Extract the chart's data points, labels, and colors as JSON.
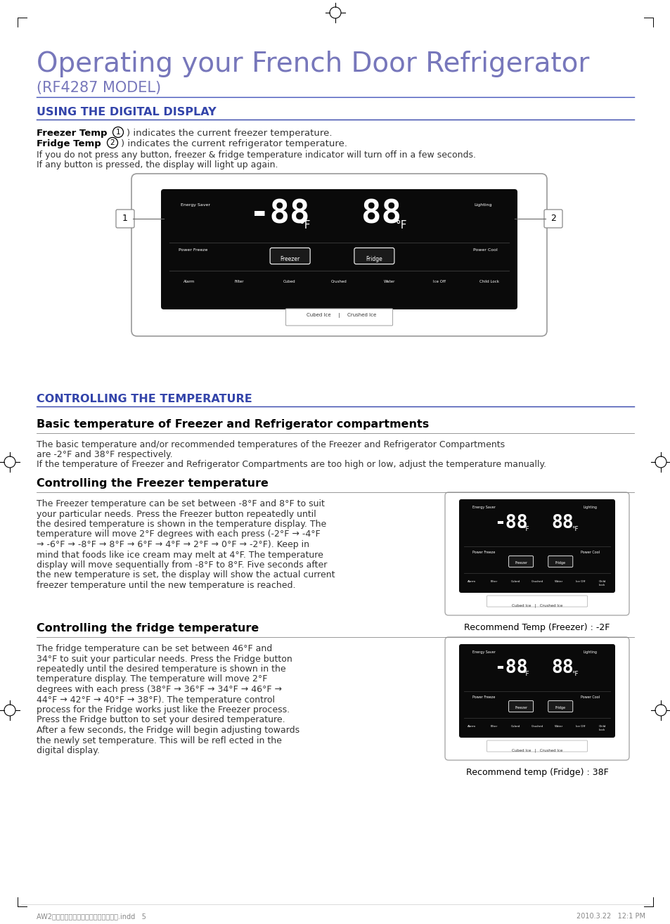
{
  "title_main": "Operating your French Door Refrigerator",
  "title_sub": "(RF4287 MODEL)",
  "title_color": "#7777bb",
  "section1_heading": "USING THE DIGITAL DISPLAY",
  "section_color": "#3344aa",
  "section2_heading": "CONTROLLING THE TEMPERATURE",
  "body_color": "#333333",
  "bold_color": "#000000",
  "line_color": "#4455bb",
  "bg_color": "#ffffff",
  "info_line1": "If you do not press any button, freezer & fridge temperature indicator will turn off in a few seconds.",
  "info_line2": "If any button is pressed, the display will light up again.",
  "basic_temp_heading": "Basic temperature of Freezer and Refrigerator compartments",
  "basic_temp_p1": "The basic temperature and/or recommended temperatures of the Freezer and Refrigerator Compartments",
  "basic_temp_p2": "are -2°F and 38°F respectively.",
  "basic_temp_p3": "If the temperature of Freezer and Refrigerator Compartments are too high or low, adjust the temperature manually.",
  "freezer_heading": "Controlling the Freezer temperature",
  "freezer_text_lines": [
    "The Freezer temperature can be set between -8°F and 8°F to suit",
    "your particular needs. Press the Freezer button repeatedly until",
    "the desired temperature is shown in the temperature display. The",
    "temperature will move 2°F degrees with each press (-2°F → -4°F",
    "→ -6°F → -8°F → 8°F → 6°F → 4°F → 2°F → 0°F → -2°F). Keep in",
    "mind that foods like ice cream may melt at 4°F. The temperature",
    "display will move sequentially from -8°F to 8°F. Five seconds after",
    "the new temperature is set, the display will show the actual current",
    "freezer temperature until the new temperature is reached."
  ],
  "freezer_caption": "Recommend Temp (Freezer) : -2F",
  "fridge_ctrl_heading": "Controlling the fridge temperature",
  "fridge_ctrl_lines": [
    "The fridge temperature can be set between 46°F and",
    "34°F to suit your particular needs. Press the Fridge button",
    "repeatedly until the desired temperature is shown in the",
    "temperature display. The temperature will move 2°F",
    "degrees with each press (38°F → 36°F → 34°F → 46°F →",
    "44°F → 42°F → 40°F → 38°F). The temperature control",
    "process for the Fridge works just like the Freezer process.",
    "Press the Fridge button to set your desired temperature.",
    "After a few seconds, the Fridge will begin adjusting towards",
    "the newly set temperature. This will be refl ected in the",
    "digital display."
  ],
  "fridge_caption": "Recommend temp (Fridge) : 38F",
  "footer_left": "AW2가나다라사아자차카타파하나다라사.indd   5",
  "footer_right": "2010.3.22   12:1 PM"
}
